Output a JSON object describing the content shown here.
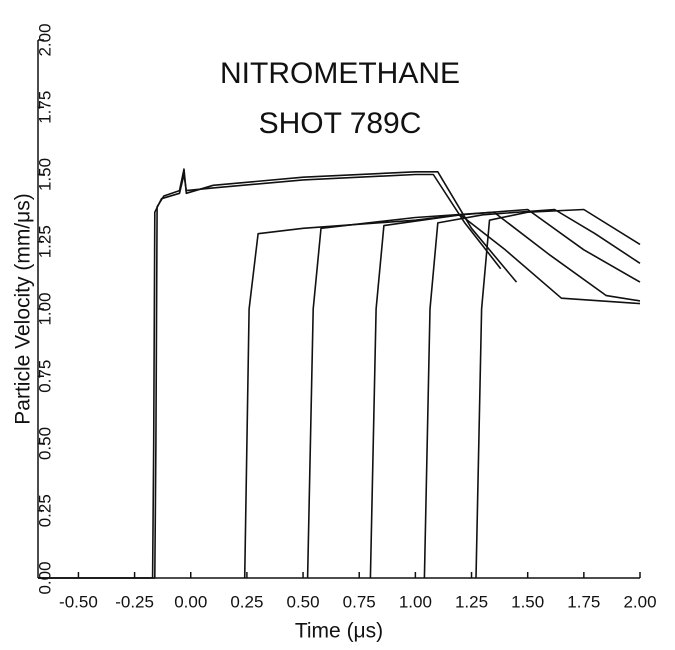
{
  "chart_data": {
    "type": "line",
    "title": [
      "NITROMETHANE",
      "SHOT 789C"
    ],
    "x_label": "Time (μs)",
    "y_label": "Particle Velocity (mm/μs)",
    "color": "#111111",
    "xlim": [
      -0.68,
      2.0
    ],
    "ylim": [
      0,
      2.0
    ],
    "xticks": [
      {
        "value": -0.5,
        "label": "-0.50"
      },
      {
        "value": -0.25,
        "label": "-0.25"
      },
      {
        "value": 0,
        "label": "0.00"
      },
      {
        "value": 0.25,
        "label": "0.25"
      },
      {
        "value": 0.5,
        "label": "0.50"
      },
      {
        "value": 0.75,
        "label": "0.75"
      },
      {
        "value": 1.0,
        "label": "1.00"
      },
      {
        "value": 1.25,
        "label": "1.25"
      },
      {
        "value": 1.5,
        "label": "1.50"
      },
      {
        "value": 1.75,
        "label": "1.75"
      },
      {
        "value": 2.0,
        "label": "2.00"
      }
    ],
    "yticks": [
      {
        "value": 0,
        "label": "0.00"
      },
      {
        "value": 0.25,
        "label": "0.25"
      },
      {
        "value": 0.5,
        "label": "0.50"
      },
      {
        "value": 0.75,
        "label": "0.75"
      },
      {
        "value": 1.0,
        "label": "1.00"
      },
      {
        "value": 1.25,
        "label": "1.25"
      },
      {
        "value": 1.5,
        "label": "1.50"
      },
      {
        "value": 1.75,
        "label": "1.75"
      },
      {
        "value": 2.0,
        "label": "2.00"
      }
    ],
    "series": [
      {
        "x": [
          -0.68,
          -0.16,
          -0.155,
          -0.15,
          -0.12,
          -0.05,
          -0.03,
          -0.02,
          0.1,
          0.5,
          1.0,
          1.1,
          1.25,
          1.45
        ],
        "values": [
          0,
          0,
          0.5,
          1.38,
          1.42,
          1.44,
          1.52,
          1.43,
          1.46,
          1.49,
          1.51,
          1.51,
          1.3,
          1.1
        ]
      },
      {
        "x": [
          -0.68,
          -0.17,
          -0.165,
          -0.16,
          -0.13,
          -0.05,
          -0.03,
          -0.02,
          0.1,
          0.5,
          1.0,
          1.08,
          1.22,
          1.38
        ],
        "values": [
          0,
          0,
          0.5,
          1.36,
          1.41,
          1.43,
          1.5,
          1.44,
          1.45,
          1.48,
          1.5,
          1.5,
          1.32,
          1.15
        ]
      },
      {
        "x": [
          0.24,
          0.26,
          0.3,
          0.5,
          1.0,
          1.2,
          1.4,
          1.65,
          2.0
        ],
        "values": [
          0,
          1.0,
          1.28,
          1.3,
          1.33,
          1.35,
          1.22,
          1.04,
          1.02
        ]
      },
      {
        "x": [
          0.52,
          0.545,
          0.58,
          1.0,
          1.35,
          1.6,
          1.85,
          2.0
        ],
        "values": [
          0,
          1.0,
          1.3,
          1.34,
          1.36,
          1.2,
          1.05,
          1.03
        ]
      },
      {
        "x": [
          0.8,
          0.825,
          0.86,
          1.2,
          1.5,
          1.75,
          2.0
        ],
        "values": [
          0,
          1.0,
          1.31,
          1.35,
          1.37,
          1.22,
          1.1
        ]
      },
      {
        "x": [
          1.04,
          1.065,
          1.1,
          1.3,
          1.62,
          1.8,
          2.0
        ],
        "values": [
          0,
          1.0,
          1.32,
          1.35,
          1.37,
          1.28,
          1.17
        ]
      },
      {
        "x": [
          1.27,
          1.295,
          1.33,
          1.5,
          1.75,
          2.0
        ],
        "values": [
          0,
          1.0,
          1.33,
          1.36,
          1.37,
          1.24
        ]
      }
    ]
  }
}
